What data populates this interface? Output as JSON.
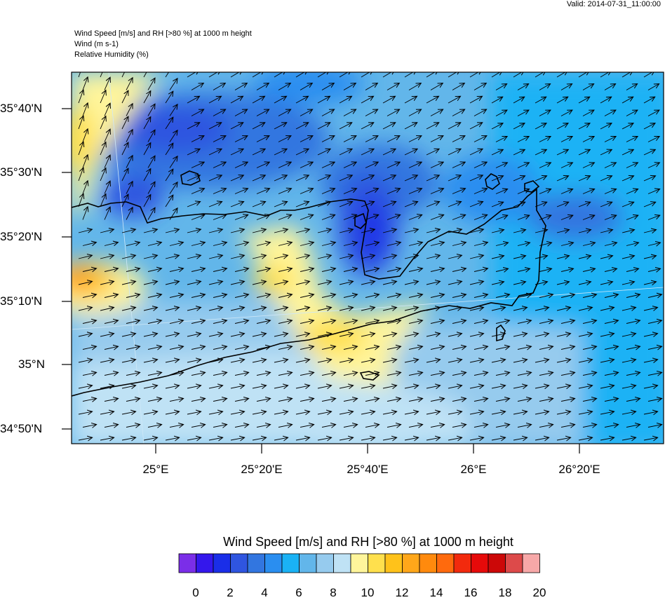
{
  "valid_time": "Valid: 2014-07-31_11:00:00",
  "header": {
    "line1": "Wind Speed [m/s] and RH [>80 %] at 1000 m height",
    "line2": "Wind   (m s-1)",
    "line3": "Relative Humidity   (%)"
  },
  "map": {
    "lat_labels": [
      "35°40'N",
      "35°30'N",
      "35°20'N",
      "35°10'N",
      "35°N",
      "34°50'N"
    ],
    "lon_labels": [
      "25°E",
      "25°20'E",
      "25°40'E",
      "26°E",
      "26°20'E"
    ]
  },
  "colorbar": {
    "title": "Wind Speed [m/s] and RH [>80 %] at 1000 m height",
    "labels": [
      "0",
      "2",
      "4",
      "6",
      "8",
      "10",
      "12",
      "14",
      "16",
      "18",
      "20"
    ],
    "colors": [
      "#7b2ee8",
      "#3417ec",
      "#1a2ee8",
      "#2f55e0",
      "#3276e0",
      "#2a8ef0",
      "#1ab2f5",
      "#62b6ea",
      "#96cbee",
      "#bfe2f5",
      "#fff59b",
      "#ffe04d",
      "#ffc21a",
      "#ffa71a",
      "#ff8a0d",
      "#ff6a0d",
      "#f22a0d",
      "#e60a0a",
      "#cc0808",
      "#dd4a4a",
      "#f7a8a8"
    ]
  }
}
